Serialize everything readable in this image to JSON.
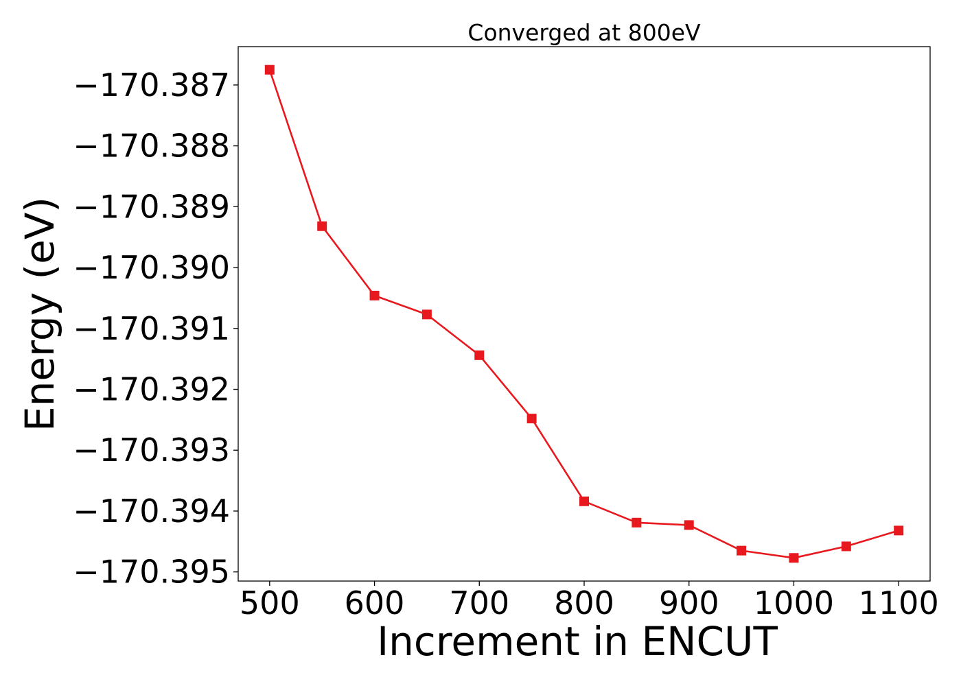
{
  "chart_data": {
    "type": "line",
    "title": "Converged at 800eV",
    "xlabel": "Increment in ENCUT",
    "ylabel": "Energy (eV)",
    "xlim": [
      470,
      1130
    ],
    "ylim": [
      -170.39515,
      -170.38637
    ],
    "xticks": [
      500,
      600,
      700,
      800,
      900,
      1000,
      1100
    ],
    "yticks": [
      -170.387,
      -170.388,
      -170.389,
      -170.39,
      -170.391,
      -170.392,
      -170.393,
      -170.394,
      -170.395
    ],
    "ytick_labels": [
      "−170.387",
      "−170.388",
      "−170.389",
      "−170.390",
      "−170.391",
      "−170.392",
      "−170.393",
      "−170.394",
      "−170.395"
    ],
    "grid": false,
    "series": [
      {
        "color": "#e8191e",
        "marker": "square",
        "x": [
          500,
          550,
          600,
          650,
          700,
          750,
          800,
          850,
          900,
          950,
          1000,
          1050,
          1100
        ],
        "y": [
          -170.38675,
          -170.38932,
          -170.39046,
          -170.39077,
          -170.39144,
          -170.39248,
          -170.39384,
          -170.39419,
          -170.39423,
          -170.39465,
          -170.39477,
          -170.39458,
          -170.39432
        ]
      }
    ]
  }
}
